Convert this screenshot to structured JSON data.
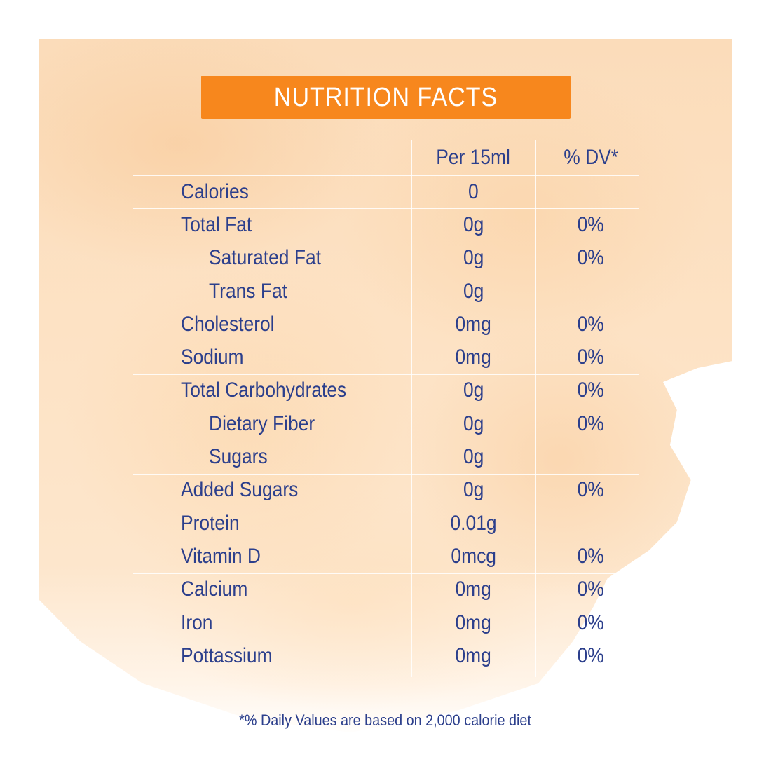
{
  "title": "NUTRITION FACTS",
  "colors": {
    "banner": "#f7871d",
    "text": "#2c3f8c",
    "background_wash": "#fbdcba"
  },
  "headers": {
    "amount": "Per 15ml",
    "dv": "% DV*"
  },
  "rows": [
    {
      "name": "Calories",
      "amount": "0",
      "dv": "",
      "indent": false,
      "sep": true
    },
    {
      "name": "Total Fat",
      "amount": "0g",
      "dv": "0%",
      "indent": false,
      "sep": true
    },
    {
      "name": "Saturated Fat",
      "amount": "0g",
      "dv": "0%",
      "indent": true,
      "sep": false
    },
    {
      "name": "Trans Fat",
      "amount": "0g",
      "dv": "",
      "indent": true,
      "sep": false
    },
    {
      "name": "Cholesterol",
      "amount": "0mg",
      "dv": "0%",
      "indent": false,
      "sep": true
    },
    {
      "name": "Sodium",
      "amount": "0mg",
      "dv": "0%",
      "indent": false,
      "sep": true
    },
    {
      "name": "Total Carbohydrates",
      "amount": "0g",
      "dv": "0%",
      "indent": false,
      "sep": true
    },
    {
      "name": "Dietary Fiber",
      "amount": "0g",
      "dv": "0%",
      "indent": true,
      "sep": false
    },
    {
      "name": "Sugars",
      "amount": "0g",
      "dv": "",
      "indent": true,
      "sep": false
    },
    {
      "name": "Added Sugars",
      "amount": "0g",
      "dv": "0%",
      "indent": false,
      "sep": true
    },
    {
      "name": "Protein",
      "amount": "0.01g",
      "dv": "",
      "indent": false,
      "sep": true
    },
    {
      "name": "Vitamin D",
      "amount": "0mcg",
      "dv": "0%",
      "indent": false,
      "sep": true
    },
    {
      "name": "Calcium",
      "amount": "0mg",
      "dv": "0%",
      "indent": false,
      "sep": true
    },
    {
      "name": "Iron",
      "amount": "0mg",
      "dv": "0%",
      "indent": false,
      "sep": false
    },
    {
      "name": "Pottassium",
      "amount": "0mg",
      "dv": "0%",
      "indent": false,
      "sep": false
    }
  ],
  "footnote": "*% Daily Values are based on 2,000 calorie diet"
}
